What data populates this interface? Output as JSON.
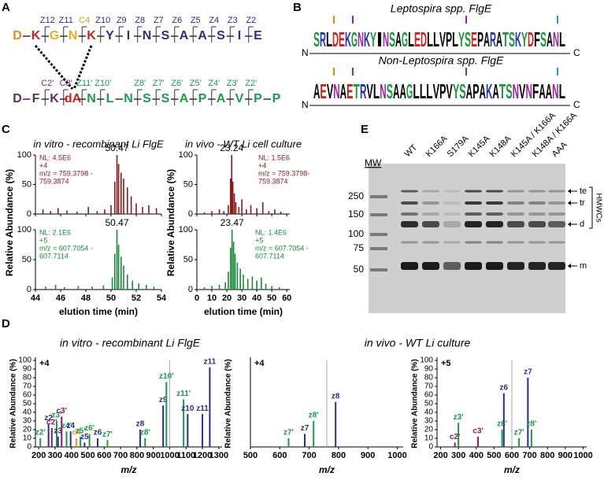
{
  "panels": {
    "a": "A",
    "b": "B",
    "c": "C",
    "d": "D",
    "e": "E"
  },
  "peptide": {
    "top": {
      "residues": [
        "D",
        "K",
        "G",
        "N",
        "K",
        "Y",
        "I",
        "N",
        "S",
        "A",
        "A",
        "S",
        "I",
        "E"
      ],
      "fragments": [
        "Z12",
        "Z11",
        "C4",
        "Z10",
        "Z9",
        "Z8",
        "Z7",
        "Z6",
        "Z5",
        "Z4",
        "Z3",
        "Z2"
      ]
    },
    "bottom": {
      "residues": [
        "D",
        "F",
        "K",
        "dA",
        "N",
        "L",
        "N",
        "S",
        "S",
        "A",
        "P",
        "A",
        "V",
        "P",
        "P"
      ],
      "fragments": [
        "C2'",
        "C3'",
        "Z11'",
        "Z10'",
        "Z8'",
        "Z7'",
        "Z6'",
        "Z5'",
        "Z4'",
        "Z3'",
        "Z2'"
      ]
    }
  },
  "logos": {
    "top": {
      "title": "Leptospira spp. FlgE",
      "sequence": "SRLDEKGNKYINSAGLEDLLVPLYSEPARATSKYDFSANL",
      "n": "N",
      "c": "C"
    },
    "bottom": {
      "title": "Non-Leptospira spp. FlgE",
      "sequence": "AEVNAETRVLNSAAGLLLVPVYSAPAKATSNVNFAANL",
      "n": "N",
      "c": "C"
    }
  },
  "chart_data": [
    {
      "type": "chromatogram",
      "title": "in vitro - recombinant Li FlgE",
      "xlabel": "elution time (min)",
      "ylabel": "Relative Abundance (%)",
      "xlim": [
        44,
        54
      ],
      "xticks": [
        44,
        46,
        48,
        50,
        52,
        54
      ],
      "series": [
        {
          "color": "#8b1a1a",
          "peak_label": "50.47",
          "annotations": [
            "NL: 4.5E6",
            "+4",
            "m/z = 759.3798 -",
            "759.3874"
          ],
          "ylim": [
            0,
            100
          ],
          "yticks": [
            0,
            50,
            100
          ],
          "x": [
            44.6,
            45.2,
            45.8,
            46.5,
            47.3,
            48.2,
            48.9,
            49.5,
            50.0,
            50.3,
            50.47,
            50.6,
            50.8,
            51.0,
            51.3,
            51.6,
            52.0,
            52.5,
            53.0,
            53.6
          ],
          "values": [
            8,
            5,
            10,
            6,
            4,
            12,
            5,
            8,
            15,
            55,
            100,
            85,
            70,
            60,
            45,
            30,
            18,
            12,
            15,
            10
          ]
        },
        {
          "color": "#1a8a3a",
          "peak_label": "50.47",
          "annotations": [
            "NL: 2.1E6",
            "+5",
            "m/z = 607.7054 -",
            "607.7114"
          ],
          "ylim": [
            0,
            100
          ],
          "yticks": [
            0,
            50,
            100
          ],
          "x": [
            44.8,
            45.6,
            46.3,
            47.4,
            48.5,
            49.4,
            50.1,
            50.3,
            50.47,
            50.6,
            50.8,
            51.0,
            51.3,
            51.7,
            52.2,
            52.8,
            53.4
          ],
          "values": [
            5,
            8,
            4,
            6,
            5,
            7,
            20,
            60,
            100,
            75,
            55,
            40,
            25,
            15,
            10,
            8,
            5
          ]
        }
      ]
    },
    {
      "type": "chromatogram",
      "title": "in vivo - WT Li cell culture",
      "xlabel": "elution time (min)",
      "ylabel": "Relative Abundance (%)",
      "xlim": [
        0,
        62
      ],
      "xticks": [
        0,
        10,
        20,
        30,
        40,
        50,
        60
      ],
      "series": [
        {
          "color": "#8b1a1a",
          "peak_label": "23.24",
          "annotations": [
            "NL: 1.5E6",
            "+4",
            "m/z = 759.3798-",
            "759.3874"
          ],
          "ylim": [
            0,
            100
          ],
          "yticks": [
            0,
            50,
            100
          ],
          "x": [
            5,
            10,
            15,
            18,
            21,
            22.5,
            23.24,
            24,
            25,
            26,
            28,
            30,
            33,
            36,
            40,
            44,
            48,
            52,
            56
          ],
          "values": [
            3,
            5,
            8,
            5,
            15,
            60,
            100,
            55,
            35,
            20,
            12,
            25,
            8,
            15,
            10,
            20,
            5,
            8,
            4
          ]
        },
        {
          "color": "#1a8a3a",
          "peak_label": "23.47",
          "annotations": [
            "NL: 1.4E6",
            "+5",
            "m/z = 607.7054 -",
            "607.7114"
          ],
          "ylim": [
            0,
            100
          ],
          "yticks": [
            0,
            50,
            100
          ],
          "x": [
            5,
            10,
            15,
            19,
            21,
            22.5,
            23.47,
            24.5,
            25.5,
            27,
            29,
            31,
            34,
            37,
            40,
            43,
            46,
            50,
            55
          ],
          "values": [
            4,
            6,
            8,
            12,
            30,
            70,
            100,
            80,
            60,
            45,
            35,
            25,
            18,
            22,
            15,
            20,
            10,
            6,
            4
          ]
        }
      ]
    },
    {
      "type": "spectrum",
      "title": "in vitro - recombinant Li FlgE",
      "charge": "+4",
      "xlabel": "m/z",
      "ylabel": "Relative Abundance (%)",
      "xlim": [
        180,
        1320
      ],
      "xticks": [
        200,
        300,
        400,
        500,
        600,
        700,
        800,
        900,
        1000,
        1100,
        1200,
        1300
      ],
      "ylim": [
        0,
        100
      ],
      "yticks": [
        0,
        10,
        20,
        30,
        40,
        50,
        60,
        70,
        80,
        90,
        100
      ],
      "peaks": {
        "x": [
          210,
          260,
          280,
          310,
          318,
          340,
          370,
          395,
          430,
          455,
          480,
          510,
          560,
          620,
          820,
          850,
          960,
          980,
          1000,
          1085,
          1110,
          1200,
          1245
        ],
        "values": [
          10,
          27,
          22,
          30,
          12,
          35,
          18,
          18,
          10,
          12,
          5,
          15,
          10,
          8,
          20,
          10,
          48,
          75,
          100,
          55,
          38,
          38,
          92
        ],
        "labels": [
          "z2'",
          "z2",
          "c2'",
          "z3'",
          "z3",
          "c3'",
          "z4'",
          "z4",
          "c4",
          "z5'",
          "z5",
          "z6'",
          "z6",
          "z7'",
          "z8",
          "z8'",
          "z9",
          "z10'",
          null,
          "z11'",
          "z10",
          "z11",
          "z11"
        ],
        "colors": [
          "#1a9a4a",
          "#2a2f8a",
          "#8a1a6a",
          "#1a9a4a",
          "#2a2f8a",
          "#8a1a6a",
          "#1a9a4a",
          "#2a2f8a",
          "#e0a020",
          "#1a9a4a",
          "#2a2f8a",
          "#1a9a4a",
          "#2a2f8a",
          "#1a9a4a",
          "#2a2f8a",
          "#1a9a4a",
          "#2a2f8a",
          "#1a9a4a",
          "#aaaaaa",
          "#1a9a4a",
          "#2a2f8a",
          "#2a2f8a",
          "#2a2f8a"
        ]
      }
    },
    {
      "type": "spectrum",
      "title": "in vivo - WT Li culture",
      "charge": "+4",
      "xlabel": "m/z",
      "ylabel": "Relative Abundance (%)",
      "xlim": [
        500,
        1020
      ],
      "xticks": [
        500,
        600,
        700,
        800,
        900,
        1000
      ],
      "ylim": [
        0,
        100
      ],
      "peaks": {
        "x": [
          630,
          685,
          715,
          760,
          790
        ],
        "values": [
          10,
          15,
          30,
          100,
          52
        ],
        "labels": [
          "z7'",
          "z7",
          "z8'",
          null,
          "z8"
        ],
        "colors": [
          "#1a9a4a",
          "#2a2f8a",
          "#1a9a4a",
          "#aaaaaa",
          "#2a2f8a"
        ]
      }
    },
    {
      "type": "spectrum",
      "charge": "+5",
      "xlabel": "m/z",
      "ylabel": "Relative Abundance (%)",
      "xlim": [
        180,
        1020
      ],
      "xticks": [
        200,
        300,
        400,
        500,
        600,
        700,
        800,
        900,
        1000
      ],
      "ylim": [
        0,
        100
      ],
      "yticks": [
        0,
        10,
        20,
        30,
        40,
        50,
        60,
        70,
        80,
        90,
        100
      ],
      "peaks": {
        "x": [
          280,
          300,
          410,
          545,
          555,
          600,
          640,
          690,
          710
        ],
        "values": [
          5,
          28,
          12,
          20,
          62,
          100,
          10,
          80,
          20
        ],
        "labels": [
          "c2'",
          "z3'",
          "c3'",
          "z6'",
          "z6",
          null,
          "z7'",
          "z7",
          "z8'"
        ],
        "colors": [
          "#8a1a6a",
          "#1a9a4a",
          "#8a1a6a",
          "#1a9a4a",
          "#2a2f8a",
          "#aaaaaa",
          "#1a9a4a",
          "#2a2f8a",
          "#1a9a4a"
        ]
      }
    }
  ],
  "gel": {
    "mw_label": "MW",
    "mw": [
      250,
      150,
      100,
      75,
      50
    ],
    "lanes": [
      "WT",
      "K166A",
      "S179A",
      "K145A",
      "K148A",
      "K145A / K166A",
      "K148A / K166A",
      "AAA"
    ],
    "bands": [
      "te",
      "tr",
      "d",
      "m"
    ],
    "bracket": "HMWCs"
  }
}
